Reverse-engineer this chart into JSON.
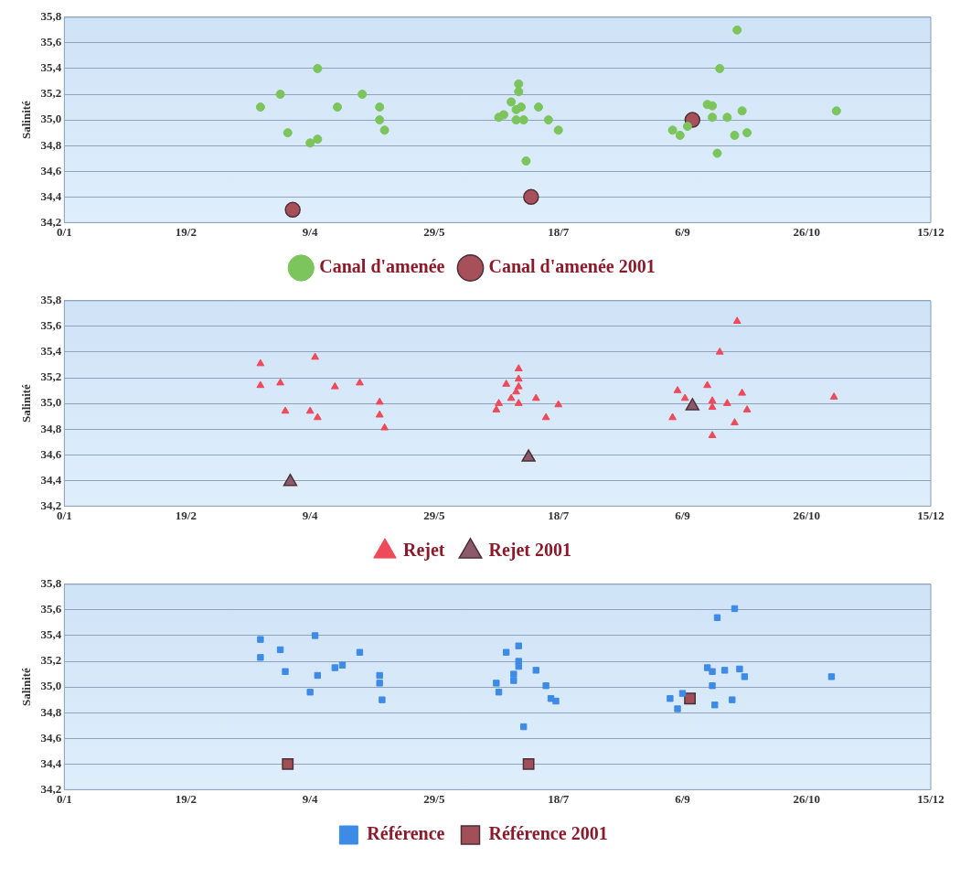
{
  "chart_data": [
    {
      "type": "scatter",
      "ylabel": "Salinité",
      "xlim": [
        "--01-01",
        "--12-15"
      ],
      "ylim": [
        34.2,
        35.8
      ],
      "xticks": [
        {
          "value": "--01-01",
          "label": "0/1"
        },
        {
          "value": "--02-19",
          "label": "19/2"
        },
        {
          "value": "--04-09",
          "label": "9/4"
        },
        {
          "value": "--05-29",
          "label": "29/5"
        },
        {
          "value": "--07-18",
          "label": "18/7"
        },
        {
          "value": "--09-06",
          "label": "6/9"
        },
        {
          "value": "--10-26",
          "label": "26/10"
        },
        {
          "value": "--12-15",
          "label": "15/12"
        }
      ],
      "yticks": [
        {
          "value": 34.2,
          "label": "34,2"
        },
        {
          "value": 34.4,
          "label": "34,4"
        },
        {
          "value": 34.6,
          "label": "34,6"
        },
        {
          "value": 34.8,
          "label": "34,8"
        },
        {
          "value": 35.0,
          "label": "35,0"
        },
        {
          "value": 35.2,
          "label": "35,2"
        },
        {
          "value": 35.4,
          "label": "35,4"
        },
        {
          "value": 35.6,
          "label": "35,6"
        },
        {
          "value": 35.8,
          "label": "35,8"
        }
      ],
      "grid": "y",
      "legend": "bottom",
      "series": [
        {
          "name": "Canal d'amenée",
          "color": "#7cc45c",
          "marker": "circle",
          "x": [
            "--03-20",
            "--03-28",
            "--03-31",
            "--04-12",
            "--04-09",
            "--04-12",
            "--04-20",
            "--04-30",
            "--05-07",
            "--05-07",
            "--05-09",
            "--06-24",
            "--06-26",
            "--06-29",
            "--07-01",
            "--07-02",
            "--07-02",
            "--07-01",
            "--07-04",
            "--07-03",
            "--07-05",
            "--07-10",
            "--07-14",
            "--07-18",
            "--09-02",
            "--09-05",
            "--09-08",
            "--09-16",
            "--09-18",
            "--09-18",
            "--09-20",
            "--09-21",
            "--09-24",
            "--09-28",
            "--09-27",
            "--09-30",
            "--10-02",
            "--11-07"
          ],
          "values": [
            35.1,
            35.2,
            34.9,
            35.4,
            34.82,
            34.85,
            35.1,
            35.2,
            35.1,
            35.0,
            34.92,
            35.02,
            35.04,
            35.14,
            35.08,
            35.22,
            35.28,
            35.0,
            35.0,
            35.1,
            34.68,
            35.1,
            35.0,
            34.92,
            34.92,
            34.88,
            34.95,
            35.12,
            35.11,
            35.02,
            34.74,
            35.4,
            35.02,
            35.7,
            34.88,
            35.07,
            34.9,
            35.07
          ]
        },
        {
          "name": "Canal d'amenée 2001",
          "color": "#a8505a",
          "marker": "circle",
          "x": [
            "--04-02",
            "--07-07",
            "--09-10"
          ],
          "values": [
            34.3,
            34.4,
            35.0
          ]
        }
      ]
    },
    {
      "type": "scatter",
      "ylabel": "Salinité",
      "xlim": [
        "--01-01",
        "--12-15"
      ],
      "ylim": [
        34.2,
        35.8
      ],
      "xticks": [
        {
          "value": "--01-01",
          "label": "0/1"
        },
        {
          "value": "--02-19",
          "label": "19/2"
        },
        {
          "value": "--04-09",
          "label": "9/4"
        },
        {
          "value": "--05-29",
          "label": "29/5"
        },
        {
          "value": "--07-18",
          "label": "18/7"
        },
        {
          "value": "--09-06",
          "label": "6/9"
        },
        {
          "value": "--10-26",
          "label": "26/10"
        },
        {
          "value": "--12-15",
          "label": "15/12"
        }
      ],
      "yticks": [
        {
          "value": 34.2,
          "label": "34,2"
        },
        {
          "value": 34.4,
          "label": "34,4"
        },
        {
          "value": 34.6,
          "label": "34,6"
        },
        {
          "value": 34.8,
          "label": "34,8"
        },
        {
          "value": 35.0,
          "label": "35,0"
        },
        {
          "value": 35.2,
          "label": "35,2"
        },
        {
          "value": 35.4,
          "label": "35,4"
        },
        {
          "value": 35.6,
          "label": "35,6"
        },
        {
          "value": 35.8,
          "label": "35,8"
        }
      ],
      "grid": "y",
      "legend": "bottom",
      "series": [
        {
          "name": "Rejet",
          "color": "#ee4a5a",
          "marker": "triangle",
          "x": [
            "--03-20",
            "--03-20",
            "--03-28",
            "--03-30",
            "--04-11",
            "--04-09",
            "--04-12",
            "--04-19",
            "--04-29",
            "--05-07",
            "--05-07",
            "--05-09",
            "--06-23",
            "--06-24",
            "--06-27",
            "--06-29",
            "--07-01",
            "--07-02",
            "--07-02",
            "--07-02",
            "--07-02",
            "--07-09",
            "--07-13",
            "--07-18",
            "--09-02",
            "--09-04",
            "--09-07",
            "--09-16",
            "--09-18",
            "--09-18",
            "--09-18",
            "--09-21",
            "--09-24",
            "--09-28",
            "--09-27",
            "--09-30",
            "--10-02",
            "--11-06"
          ],
          "values": [
            35.31,
            35.14,
            35.16,
            34.94,
            35.36,
            34.94,
            34.89,
            35.13,
            35.16,
            35.01,
            34.91,
            34.81,
            34.95,
            35.0,
            35.15,
            35.04,
            35.09,
            35.27,
            35.19,
            35.0,
            35.13,
            35.04,
            34.89,
            34.99,
            34.89,
            35.1,
            35.04,
            35.14,
            35.02,
            34.97,
            34.75,
            35.4,
            35.0,
            35.64,
            34.85,
            35.08,
            34.95,
            35.05
          ]
        },
        {
          "name": "Rejet 2001",
          "color": "#8c5a6a",
          "marker": "triangle",
          "x": [
            "--04-01",
            "--07-06",
            "--09-10"
          ],
          "values": [
            34.39,
            34.58,
            34.98
          ]
        }
      ]
    },
    {
      "type": "scatter",
      "ylabel": "Salinité",
      "xlim": [
        "--01-01",
        "--12-15"
      ],
      "ylim": [
        34.2,
        35.8
      ],
      "xticks": [
        {
          "value": "--01-01",
          "label": "0/1"
        },
        {
          "value": "--02-19",
          "label": "19/2"
        },
        {
          "value": "--04-09",
          "label": "9/4"
        },
        {
          "value": "--05-29",
          "label": "29/5"
        },
        {
          "value": "--07-18",
          "label": "18/7"
        },
        {
          "value": "--09-06",
          "label": "6/9"
        },
        {
          "value": "--10-26",
          "label": "26/10"
        },
        {
          "value": "--12-15",
          "label": "15/12"
        }
      ],
      "yticks": [
        {
          "value": 34.2,
          "label": "34,2"
        },
        {
          "value": 34.4,
          "label": "34,4"
        },
        {
          "value": 34.6,
          "label": "34,6"
        },
        {
          "value": 34.8,
          "label": "34,8"
        },
        {
          "value": 35.0,
          "label": "35,0"
        },
        {
          "value": 35.2,
          "label": "35,2"
        },
        {
          "value": 35.4,
          "label": "35,4"
        },
        {
          "value": 35.6,
          "label": "35,6"
        },
        {
          "value": 35.8,
          "label": "35,8"
        }
      ],
      "grid": "y",
      "legend": "bottom",
      "series": [
        {
          "name": "Référence",
          "color": "#3d8be6",
          "marker": "square",
          "x": [
            "--03-20",
            "--03-20",
            "--03-28",
            "--03-30",
            "--04-09",
            "--04-11",
            "--04-12",
            "--04-19",
            "--04-22",
            "--04-29",
            "--05-07",
            "--05-07",
            "--05-08",
            "--06-23",
            "--06-24",
            "--06-27",
            "--06-30",
            "--06-30",
            "--07-02",
            "--07-02",
            "--07-02",
            "--07-04",
            "--07-09",
            "--07-13",
            "--07-15",
            "--07-17",
            "--09-01",
            "--09-04",
            "--09-06",
            "--09-16",
            "--09-18",
            "--09-18",
            "--09-19",
            "--09-20",
            "--09-23",
            "--09-27",
            "--09-26",
            "--09-29",
            "--10-01",
            "--11-05"
          ],
          "values": [
            35.37,
            35.23,
            35.29,
            35.12,
            34.96,
            35.4,
            35.09,
            35.15,
            35.17,
            35.27,
            35.09,
            35.03,
            34.9,
            35.03,
            34.96,
            35.27,
            35.1,
            35.05,
            35.32,
            35.2,
            35.16,
            34.69,
            35.13,
            35.01,
            34.91,
            34.89,
            34.91,
            34.83,
            34.95,
            35.15,
            35.12,
            35.01,
            34.86,
            35.54,
            35.13,
            35.61,
            34.9,
            35.14,
            35.08,
            35.08
          ]
        },
        {
          "name": "Référence 2001",
          "color": "#a05056",
          "marker": "square",
          "x": [
            "--03-31",
            "--07-06",
            "--09-09"
          ],
          "values": [
            34.4,
            34.4,
            34.91
          ]
        }
      ]
    }
  ]
}
